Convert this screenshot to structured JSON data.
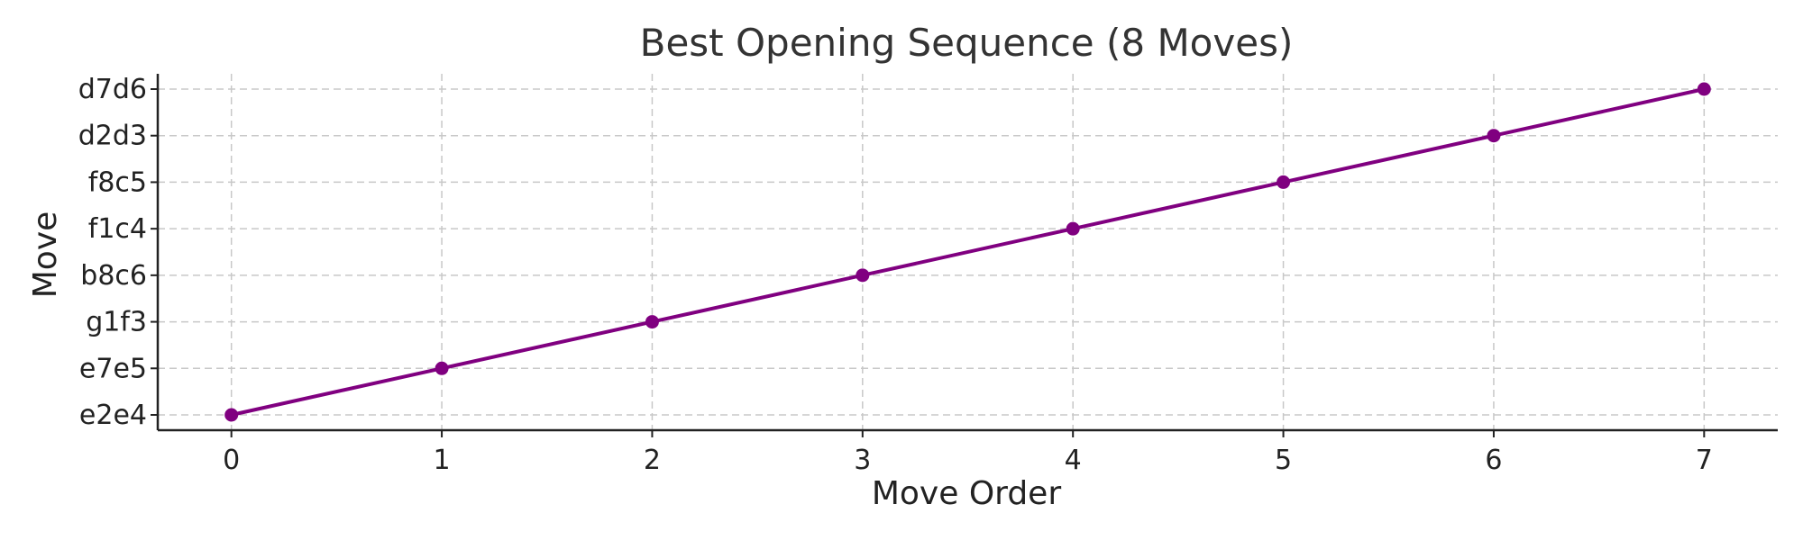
{
  "chart_data": {
    "type": "line",
    "title": "Best Opening Sequence (8 Moves)",
    "xlabel": "Move Order",
    "ylabel": "Move",
    "x": [
      0,
      1,
      2,
      3,
      4,
      5,
      6,
      7
    ],
    "categories": [
      "e2e4",
      "e7e5",
      "g1f3",
      "b8c6",
      "f1c4",
      "f8c5",
      "d2d3",
      "d7d6"
    ],
    "series": [
      {
        "values": [
          "e2e4",
          "e7e5",
          "g1f3",
          "b8c6",
          "f1c4",
          "f8c5",
          "d2d3",
          "d7d6"
        ]
      }
    ],
    "xticks": [
      0,
      1,
      2,
      3,
      4,
      5,
      6,
      7
    ],
    "xlim": [
      -0.35,
      7.35
    ],
    "grid": true,
    "color": "#800080"
  }
}
